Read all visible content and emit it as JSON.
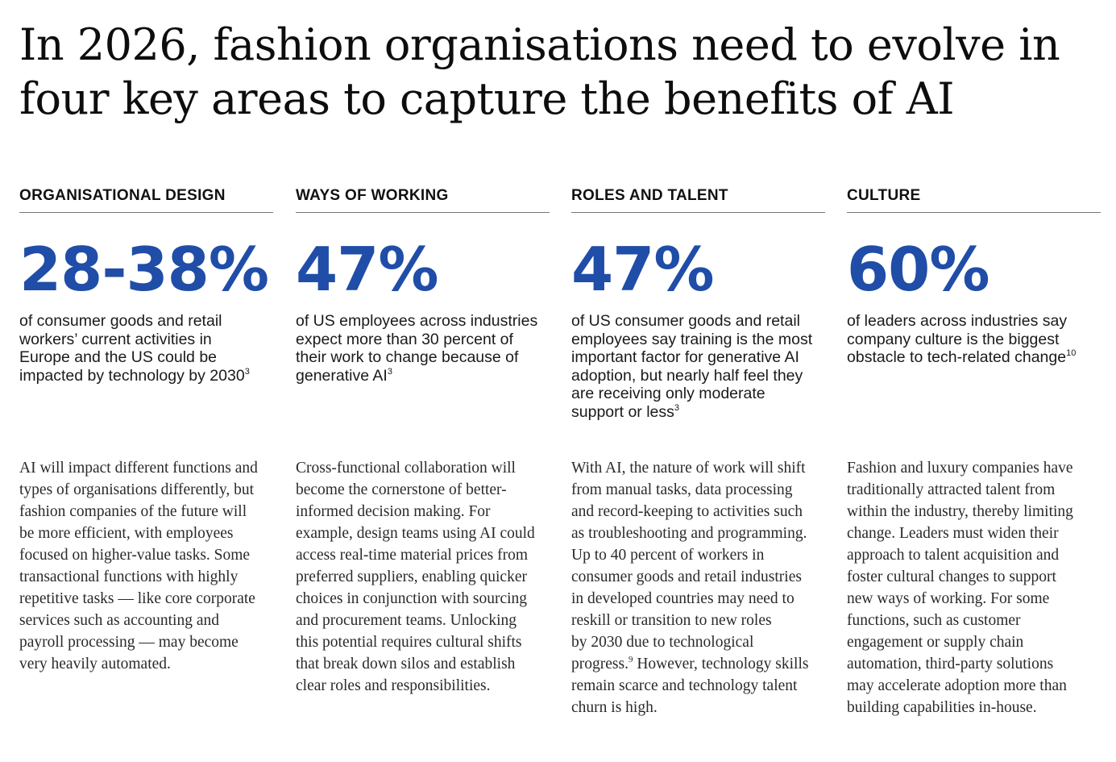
{
  "title": {
    "line1": "In 2026, fashion organisations need to evolve in",
    "line2": "four key areas to capture the benefits of AI"
  },
  "columns": [
    {
      "heading": "ORGANISATIONAL DESIGN",
      "stat": "28-38%",
      "stat_desc_lines": [
        "of consumer goods and retail",
        "workers’ current activities in",
        "Europe and the US could be",
        "impacted by technology by 2030"
      ],
      "stat_desc_ref": "3",
      "body_lines": [
        "AI will impact different functions and",
        "types of organisations differently, but",
        "fashion companies of the future will",
        "be more efficient, with employees",
        "focused on higher-value tasks. Some",
        "transactional functions with highly",
        "repetitive tasks — like core corporate",
        "services such as accounting and",
        "payroll processing — may become",
        "very heavily automated."
      ]
    },
    {
      "heading": "WAYS OF WORKING",
      "stat": "47%",
      "stat_desc_lines": [
        "of US employees across industries",
        "expect more than 30 percent of",
        "their work to change because of",
        "generative AI"
      ],
      "stat_desc_ref": "3",
      "body_lines": [
        "Cross-functional collaboration will",
        "become the cornerstone of better-",
        "informed decision making. For",
        "example, design teams using AI could",
        "access real-time material prices from",
        "preferred suppliers, enabling quicker",
        "choices in conjunction with sourcing",
        "and procurement teams. Unlocking",
        "this potential requires cultural shifts",
        "that break down silos and establish",
        "clear roles and responsibilities."
      ]
    },
    {
      "heading": "ROLES AND TALENT",
      "stat": "47%",
      "stat_desc_lines": [
        "of US consumer goods and retail",
        "employees say training is the most",
        "important factor for generative AI",
        "adoption, but nearly half feel they",
        "are receiving only moderate",
        "support or less"
      ],
      "stat_desc_ref": "3",
      "body_lines": [
        "With AI, the nature of work will shift",
        "from manual tasks, data processing",
        "and record-keeping to activities such",
        "as troubleshooting and programming.",
        "Up to 40 percent of workers in",
        "consumer goods and retail industries",
        "in developed countries may need to",
        "reskill or transition to new roles",
        "by 2030 due to technological"
      ],
      "body_ref_line": {
        "before": "progress.",
        "ref": "9",
        "after": " However, technology skills"
      },
      "body_tail_lines": [
        "remain scarce and technology talent",
        "churn is high."
      ]
    },
    {
      "heading": "CULTURE",
      "stat": "60%",
      "stat_desc_lines": [
        "of leaders across industries say",
        "company culture is the biggest",
        "obstacle to tech-related change"
      ],
      "stat_desc_ref": "10",
      "body_lines": [
        "Fashion and luxury companies have",
        "traditionally attracted talent from",
        "within the industry, thereby limiting",
        "change. Leaders must widen their",
        "approach to talent acquisition and",
        "foster cultural changes to support",
        "new ways of working. For some",
        "functions, such as customer",
        "engagement or supply chain",
        "automation, third-party solutions",
        "may accelerate adoption more than",
        "building capabilities in-house."
      ]
    }
  ],
  "colors": {
    "accent": "#1f4da8",
    "text": "#111111",
    "rule": "#777777"
  }
}
